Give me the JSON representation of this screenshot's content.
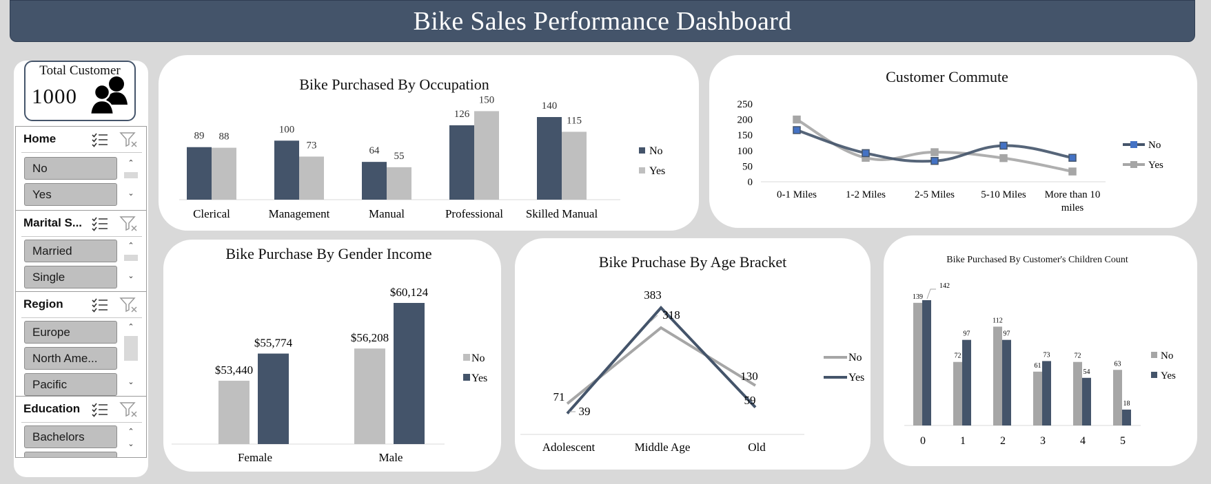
{
  "header": {
    "title": "Bike Sales Performance Dashboard"
  },
  "kpi": {
    "label": "Total Customer",
    "value": "1000"
  },
  "slicers": [
    {
      "title": "Home",
      "items": [
        "No",
        "Yes"
      ]
    },
    {
      "title": "Marital S...",
      "items": [
        "Married",
        "Single"
      ]
    },
    {
      "title": "Region",
      "items": [
        "Europe",
        "North Ame...",
        "Pacific"
      ]
    },
    {
      "title": "Education",
      "items": [
        "Bachelors"
      ]
    }
  ],
  "colors": {
    "navy": "#44546a",
    "gray": "#bfbfbf",
    "gray_dark": "#a6a6a6"
  },
  "chart_data": [
    {
      "id": "occupation",
      "type": "bar",
      "title": "Bike Purchased By Occupation",
      "categories": [
        "Clerical",
        "Management",
        "Manual",
        "Professional",
        "Skilled Manual"
      ],
      "series": [
        {
          "name": "No",
          "values": [
            89,
            100,
            64,
            126,
            140
          ],
          "color": "#44546a"
        },
        {
          "name": "Yes",
          "values": [
            88,
            73,
            55,
            150,
            115
          ],
          "color": "#bfbfbf"
        }
      ],
      "ylim": [
        0,
        160
      ],
      "legend": "right",
      "grid": false
    },
    {
      "id": "commute",
      "type": "line",
      "title": "Customer Commute",
      "categories": [
        "0-1 Miles",
        "1-2 Miles",
        "2-5 Miles",
        "5-10 Miles",
        "More than 10 miles"
      ],
      "series": [
        {
          "name": "No",
          "values": [
            166,
            92,
            67,
            116,
            77
          ],
          "color": "#44546a"
        },
        {
          "name": "Yes",
          "values": [
            200,
            77,
            95,
            76,
            33
          ],
          "color": "#a6a6a6"
        }
      ],
      "yticks": [
        "0",
        "50",
        "100",
        "150",
        "200",
        "250"
      ],
      "ylim": [
        0,
        250
      ],
      "legend": "right",
      "grid": false
    },
    {
      "id": "gender",
      "type": "bar",
      "title": "Bike Purchase By Gender Income",
      "categories": [
        "Female",
        "Male"
      ],
      "series": [
        {
          "name": "No",
          "values": [
            53440,
            56208
          ],
          "labels": [
            "$53,440",
            "$56,208"
          ],
          "color": "#bfbfbf"
        },
        {
          "name": "Yes",
          "values": [
            55774,
            60124
          ],
          "labels": [
            "$55,774",
            "$60,124"
          ],
          "color": "#44546a"
        }
      ],
      "ylim": [
        48000,
        61000
      ],
      "legend": "right",
      "grid": false
    },
    {
      "id": "age",
      "type": "line",
      "title": "Bike Pruchase By Age Bracket",
      "categories": [
        "Adolescent",
        "Middle Age",
        "Old"
      ],
      "series": [
        {
          "name": "No",
          "values": [
            71,
            318,
            130
          ],
          "color": "#a6a6a6"
        },
        {
          "name": "Yes",
          "values": [
            39,
            383,
            59
          ],
          "color": "#44546a"
        }
      ],
      "ylim": [
        0,
        420
      ],
      "legend": "right",
      "grid": false
    },
    {
      "id": "children",
      "type": "bar",
      "title": "Bike Purchased By Customer's Children Count",
      "categories": [
        "0",
        "1",
        "2",
        "3",
        "4",
        "5"
      ],
      "series": [
        {
          "name": "No",
          "values": [
            139,
            72,
            112,
            61,
            72,
            63
          ],
          "color": "#a6a6a6"
        },
        {
          "name": "Yes",
          "values": [
            142,
            97,
            97,
            73,
            54,
            18
          ],
          "color": "#44546a"
        }
      ],
      "ylim": [
        0,
        150
      ],
      "legend": "right",
      "grid": false
    }
  ]
}
